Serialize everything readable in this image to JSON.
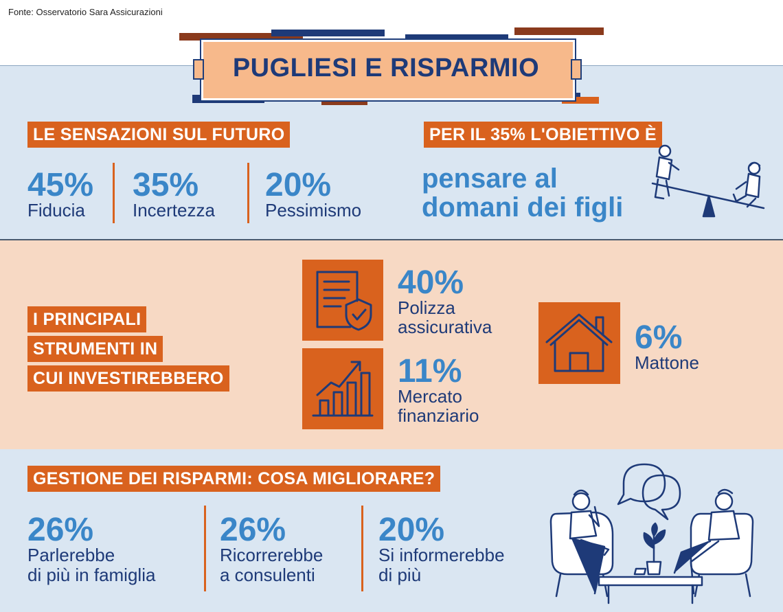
{
  "source": "Fonte: Osservatorio Sara Assicurazioni",
  "title": "PUGLIESI E RISPARMIO",
  "section_future": {
    "heading": "LE SENSAZIONI SUL FUTURO",
    "items": [
      {
        "pct": "45%",
        "label": "Fiducia"
      },
      {
        "pct": "35%",
        "label": "Incertezza"
      },
      {
        "pct": "20%",
        "label": "Pessimismo"
      }
    ]
  },
  "section_goal": {
    "heading": "PER IL 35% L'OBIETTIVO È",
    "line1": "pensare al",
    "line2": "domani dei figli"
  },
  "section_tools": {
    "heading_lines": [
      "I PRINCIPALI",
      "STRUMENTI IN",
      "CUI INVESTIREBBERO"
    ],
    "items": [
      {
        "pct": "40%",
        "label_lines": [
          "Polizza",
          "assicurativa"
        ],
        "icon": "insurance-document-icon"
      },
      {
        "pct": "11%",
        "label_lines": [
          "Mercato",
          "finanziario"
        ],
        "icon": "growth-chart-icon"
      },
      {
        "pct": "6%",
        "label_lines": [
          "Mattone"
        ],
        "icon": "house-icon"
      }
    ]
  },
  "section_savings": {
    "heading": "GESTIONE DEI RISPARMI: COSA MIGLIORARE?",
    "items": [
      {
        "pct": "26%",
        "label_lines": [
          "Parlerebbe",
          "di più in famiglia"
        ]
      },
      {
        "pct": "26%",
        "label_lines": [
          "Ricorrerebbe",
          "a consulenti"
        ]
      },
      {
        "pct": "20%",
        "label_lines": [
          "Si informerebbe",
          "di più"
        ]
      }
    ]
  },
  "colors": {
    "orange": "#d9621e",
    "navy": "#1e3a78",
    "blue": "#3a86c8",
    "light_blue_bg": "#dae6f2",
    "peach_bg": "#f7d9c4",
    "title_bg": "#f7b98b"
  }
}
